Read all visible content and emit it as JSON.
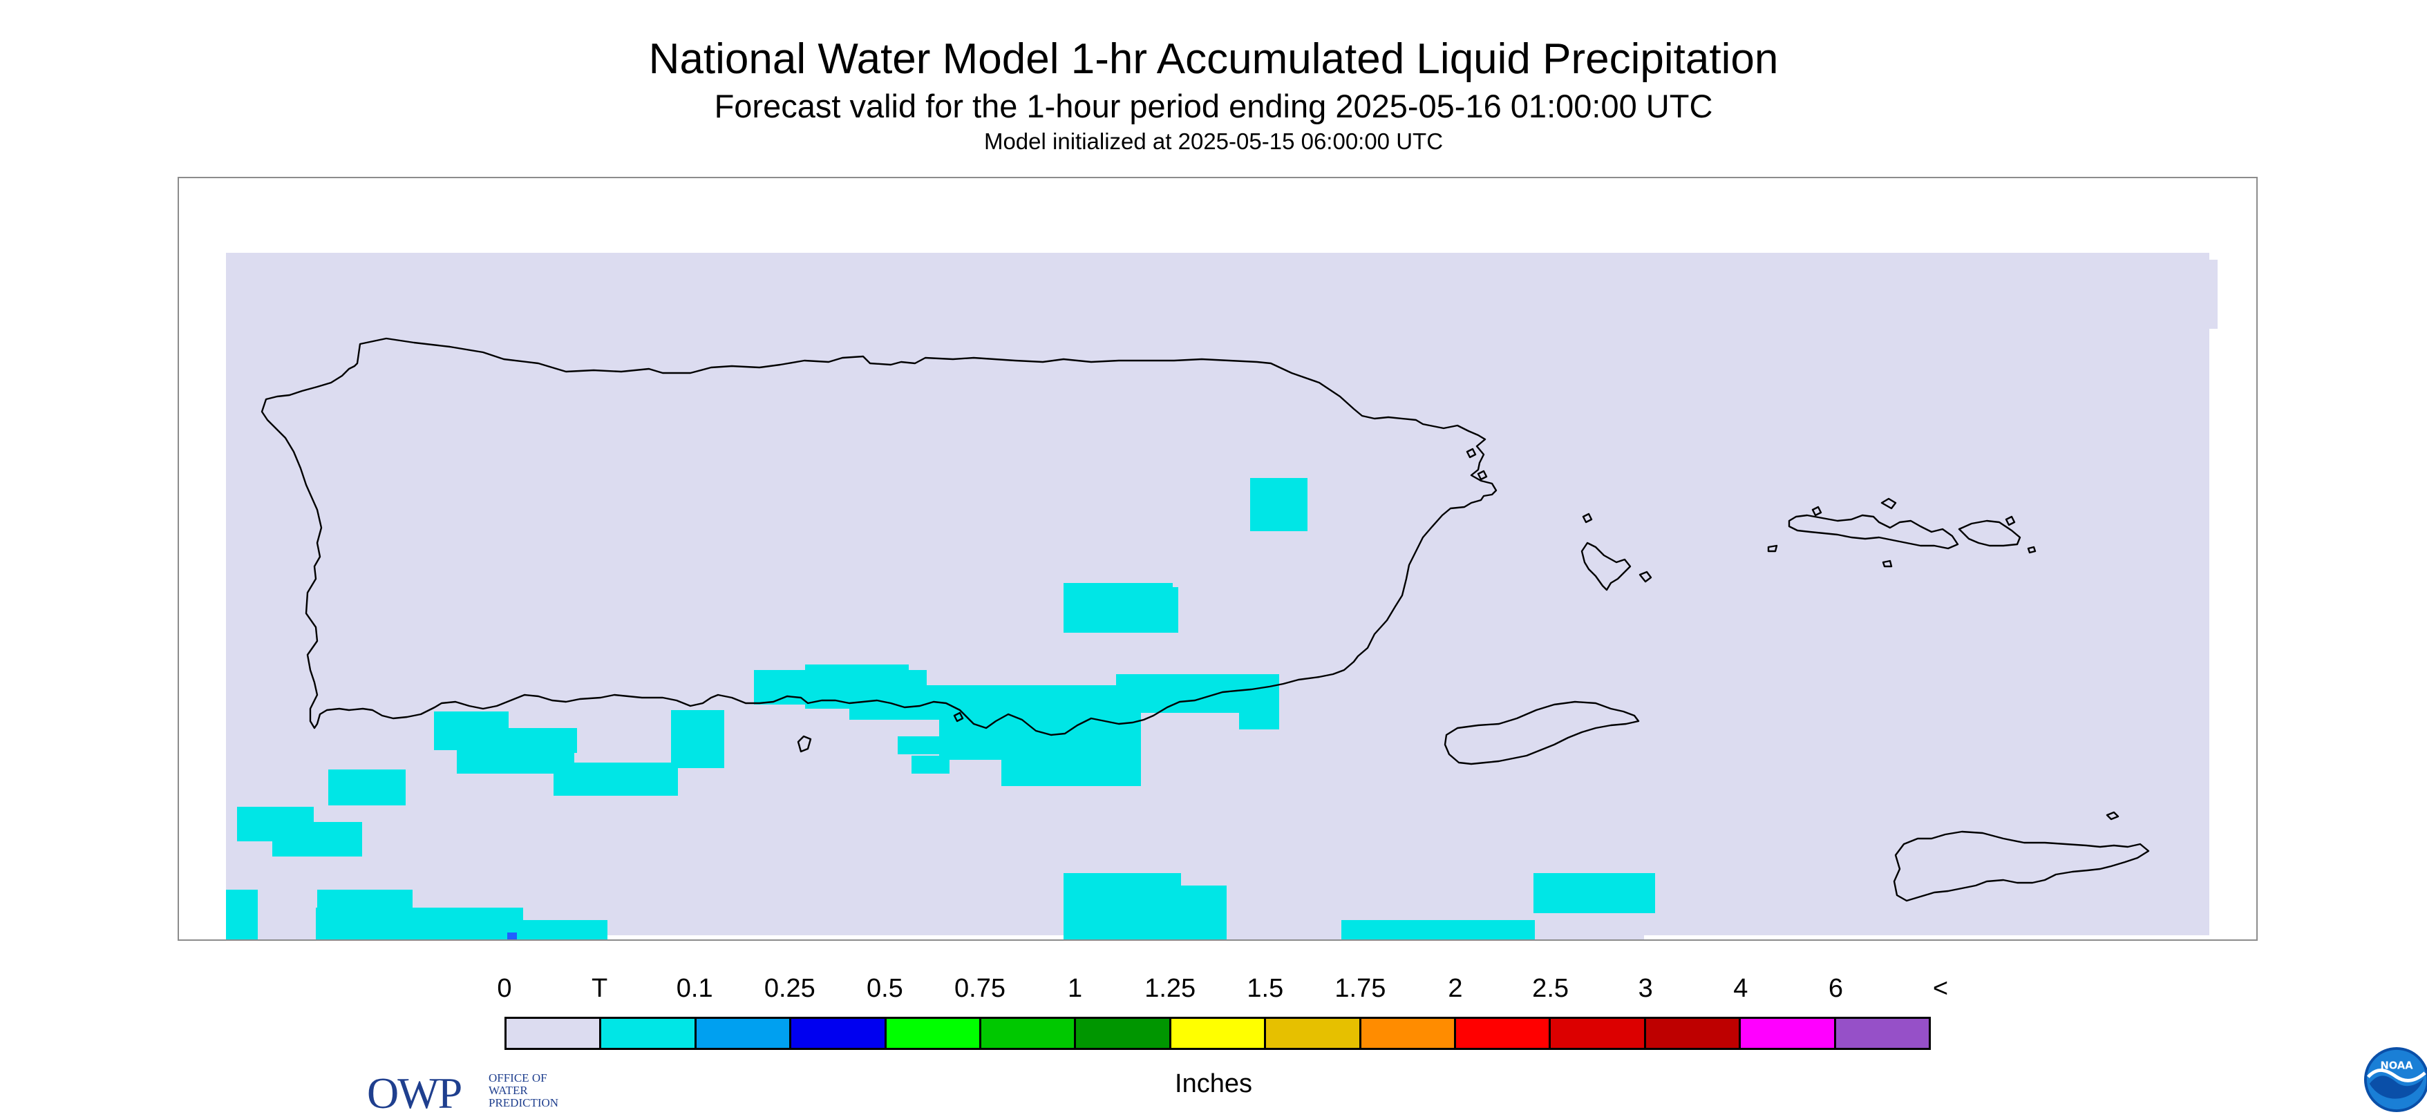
{
  "title": "National Water Model 1-hr Accumulated Liquid Precipitation",
  "subtitle": "Forecast valid for the 1-hour period ending 2025-05-16 01:00:00 UTC",
  "init_text": "Model initialized at 2025-05-15 06:00:00 UTC",
  "map": {
    "region": "Puerto Rico and U.S. Virgin Islands",
    "background_color": "#dcdcf0",
    "coastline_color": "#000000",
    "precip_color": "#00e6e6",
    "precip_category": "T"
  },
  "logos": {
    "owp_letters": "OWP",
    "owp_words": [
      "OFFICE OF",
      "WATER",
      "PREDICTION"
    ],
    "noaa_text": "NOAA"
  },
  "legend": {
    "units": "Inches",
    "ticks": [
      "0",
      "T",
      "0.1",
      "0.25",
      "0.5",
      "0.75",
      "1",
      "1.25",
      "1.5",
      "1.75",
      "2",
      "2.5",
      "3",
      "4",
      "6",
      "<"
    ],
    "colors": [
      "#dcdcf0",
      "#00e6e6",
      "#00a0f0",
      "#0000f0",
      "#00ff00",
      "#00c800",
      "#009600",
      "#ffff00",
      "#e6c000",
      "#ff8c00",
      "#ff0000",
      "#dc0000",
      "#be0000",
      "#ff00ff",
      "#9650c8"
    ]
  }
}
